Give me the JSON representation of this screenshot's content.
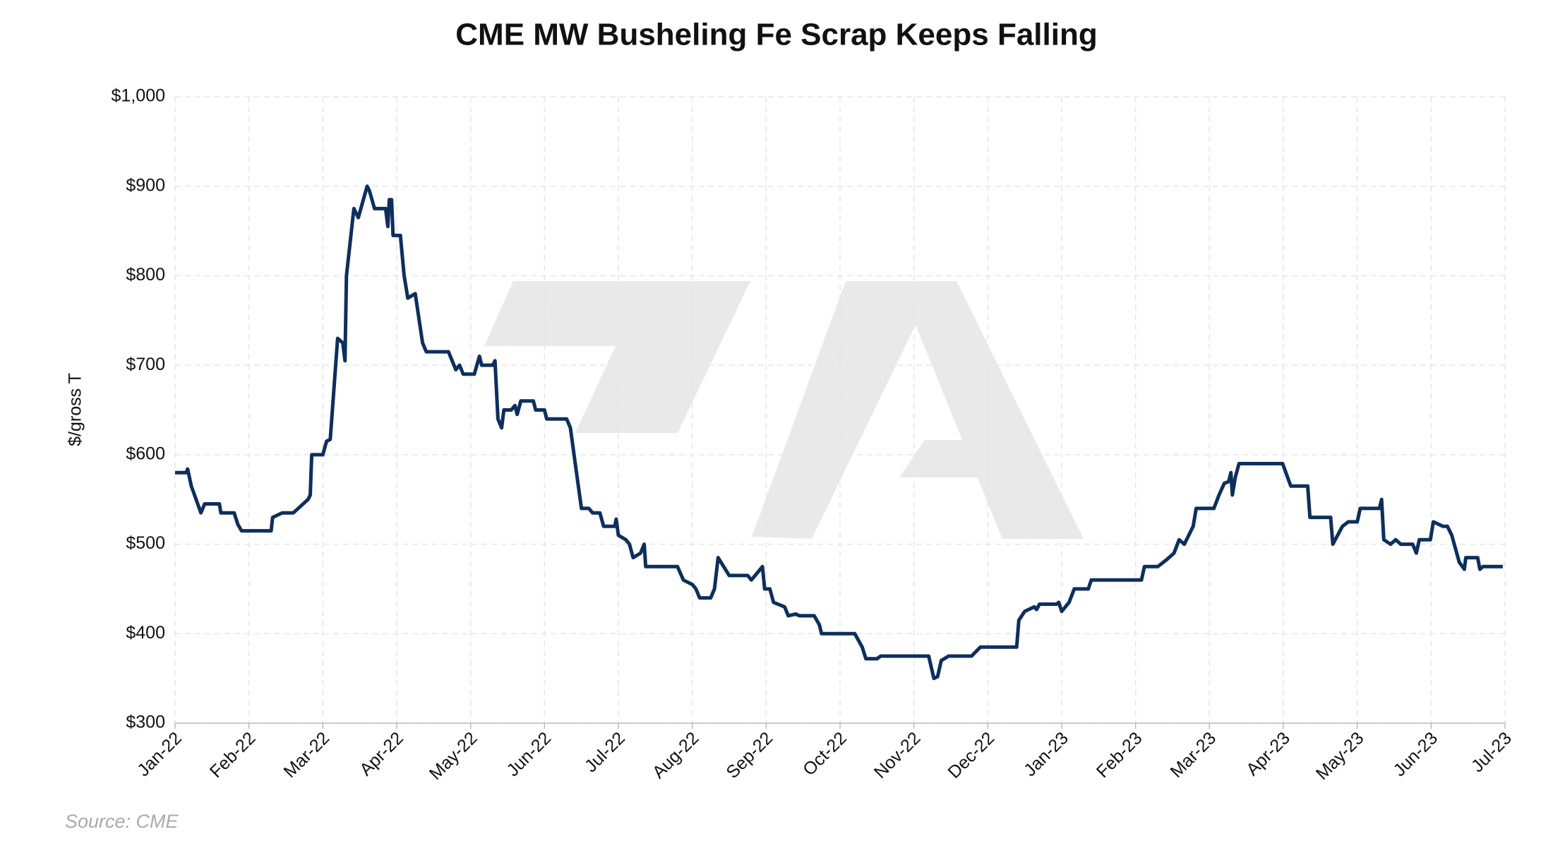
{
  "chart_data": {
    "type": "line",
    "title": "CME MW Busheling Fe Scrap Keeps Falling",
    "ylabel": "$/gross T",
    "source": "Source: CME",
    "grid": true,
    "xlim": [
      0,
      18
    ],
    "xticks": [
      {
        "value": 0,
        "label": "Jan-22"
      },
      {
        "value": 1,
        "label": "Feb-22"
      },
      {
        "value": 2,
        "label": "Mar-22"
      },
      {
        "value": 3,
        "label": "Apr-22"
      },
      {
        "value": 4,
        "label": "May-22"
      },
      {
        "value": 5,
        "label": "Jun-22"
      },
      {
        "value": 6,
        "label": "Jul-22"
      },
      {
        "value": 7,
        "label": "Aug-22"
      },
      {
        "value": 8,
        "label": "Sep-22"
      },
      {
        "value": 9,
        "label": "Oct-22"
      },
      {
        "value": 10,
        "label": "Nov-22"
      },
      {
        "value": 11,
        "label": "Dec-22"
      },
      {
        "value": 12,
        "label": "Jan-23"
      },
      {
        "value": 13,
        "label": "Feb-23"
      },
      {
        "value": 14,
        "label": "Mar-23"
      },
      {
        "value": 15,
        "label": "Apr-23"
      },
      {
        "value": 16,
        "label": "May-23"
      },
      {
        "value": 17,
        "label": "Jun-23"
      },
      {
        "value": 18,
        "label": "Jul-23"
      }
    ],
    "ylim": [
      300,
      1000
    ],
    "yticks": [
      {
        "value": 300,
        "label": "$300"
      },
      {
        "value": 400,
        "label": "$400"
      },
      {
        "value": 500,
        "label": "$500"
      },
      {
        "value": 600,
        "label": "$600"
      },
      {
        "value": 700,
        "label": "$700"
      },
      {
        "value": 800,
        "label": "$800"
      },
      {
        "value": 900,
        "label": "$900"
      },
      {
        "value": 1000,
        "label": "$1,000"
      }
    ],
    "series": [
      {
        "color": "#0d2f5c",
        "x": [
          0,
          0.15,
          0.17,
          0.22,
          0.35,
          0.4,
          0.6,
          0.62,
          0.8,
          0.85,
          0.9,
          1.3,
          1.32,
          1.45,
          1.6,
          1.8,
          1.83,
          1.85,
          2.0,
          2.05,
          2.1,
          2.2,
          2.27,
          2.3,
          2.32,
          2.42,
          2.48,
          2.6,
          2.63,
          2.7,
          2.85,
          2.88,
          2.9,
          2.93,
          2.95,
          3.05,
          3.1,
          3.15,
          3.25,
          3.35,
          3.4,
          3.7,
          3.8,
          3.85,
          3.9,
          4.05,
          4.12,
          4.15,
          4.3,
          4.33,
          4.37,
          4.42,
          4.45,
          4.55,
          4.6,
          4.63,
          4.68,
          4.85,
          4.88,
          5.0,
          5.03,
          5.3,
          5.35,
          5.45,
          5.5,
          5.6,
          5.65,
          5.75,
          5.8,
          5.95,
          5.97,
          6.0,
          6.1,
          6.15,
          6.2,
          6.3,
          6.35,
          6.37,
          6.8,
          6.88,
          7.0,
          7.05,
          7.1,
          7.25,
          7.3,
          7.35,
          7.5,
          7.75,
          7.8,
          7.9,
          7.95,
          7.98,
          8.05,
          8.1,
          8.25,
          8.3,
          8.4,
          8.45,
          8.65,
          8.72,
          8.75,
          9.2,
          9.3,
          9.35,
          9.5,
          9.55,
          10.2,
          10.27,
          10.32,
          10.37,
          10.47,
          10.78,
          10.9,
          11.39,
          11.42,
          11.5,
          11.63,
          11.66,
          11.7,
          11.93,
          11.96,
          12.0,
          12.1,
          12.17,
          12.36,
          12.4,
          13.08,
          13.12,
          13.3,
          13.41,
          13.52,
          13.59,
          13.66,
          13.78,
          13.82,
          14.06,
          14.13,
          14.2,
          14.26,
          14.29,
          14.31,
          14.35,
          14.4,
          14.99,
          15.1,
          15.33,
          15.36,
          15.64,
          15.67,
          15.8,
          15.88,
          16.0,
          16.04,
          16.3,
          16.33,
          16.36,
          16.45,
          16.52,
          16.59,
          16.75,
          16.8,
          16.84,
          16.99,
          17.03,
          17.16,
          17.22,
          17.28,
          17.33,
          17.38,
          17.45,
          17.47,
          17.63,
          17.66,
          17.7,
          17.97
        ],
        "values": [
          580,
          580,
          584,
          565,
          535,
          545,
          545,
          535,
          535,
          522,
          515,
          515,
          530,
          535,
          535,
          550,
          555,
          600,
          600,
          615,
          617,
          730,
          725,
          705,
          800,
          875,
          865,
          900,
          895,
          875,
          875,
          855,
          885,
          885,
          845,
          845,
          800,
          775,
          780,
          725,
          715,
          715,
          695,
          700,
          690,
          690,
          710,
          700,
          700,
          705,
          640,
          630,
          650,
          650,
          655,
          645,
          660,
          660,
          650,
          650,
          640,
          640,
          630,
          570,
          540,
          540,
          535,
          535,
          520,
          520,
          528,
          510,
          505,
          500,
          485,
          490,
          500,
          475,
          475,
          460,
          455,
          450,
          440,
          440,
          450,
          485,
          465,
          465,
          460,
          470,
          475,
          450,
          450,
          435,
          430,
          420,
          422,
          420,
          420,
          410,
          400,
          400,
          385,
          372,
          372,
          375,
          375,
          350,
          352,
          370,
          375,
          375,
          385,
          385,
          415,
          425,
          430,
          427,
          433,
          433,
          435,
          425,
          435,
          450,
          450,
          460,
          460,
          475,
          475,
          482,
          490,
          505,
          500,
          520,
          540,
          540,
          555,
          568,
          570,
          580,
          555,
          575,
          590,
          590,
          565,
          565,
          530,
          530,
          500,
          520,
          525,
          525,
          540,
          540,
          550,
          505,
          500,
          505,
          500,
          500,
          490,
          505,
          505,
          525,
          520,
          520,
          510,
          495,
          480,
          472,
          485,
          485,
          472,
          475,
          475
        ]
      }
    ]
  }
}
